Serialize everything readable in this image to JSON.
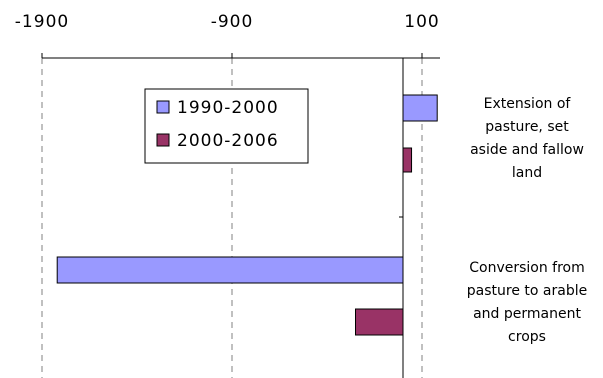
{
  "chart_data": {
    "type": "bar",
    "orientation": "horizontal",
    "title": "",
    "xlabel": "",
    "ylabel": "",
    "xlim": [
      -1980,
      180
    ],
    "x_ticks": [
      -1900,
      -900,
      100
    ],
    "x_tick_labels": [
      "-1900",
      "-900",
      "100"
    ],
    "grid": "vertical dashed",
    "legend_position": "left-center",
    "categories": [
      [
        "Extension of",
        "pasture, set",
        "aside and fallow",
        "land"
      ],
      [
        "Conversion from",
        "pasture to arable",
        "and permanent",
        "crops"
      ]
    ],
    "series": [
      {
        "name": "1990-2000",
        "color": "#9999ff",
        "values": [
          180,
          -1820
        ]
      },
      {
        "name": "2000-2006",
        "color": "#993366",
        "values": [
          45,
          -250
        ]
      }
    ]
  }
}
